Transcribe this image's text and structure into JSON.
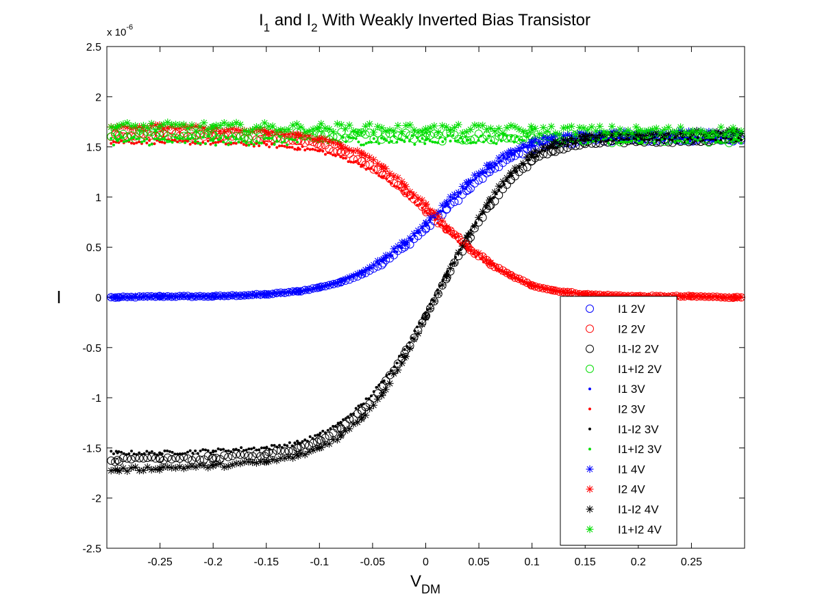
{
  "chart_data": {
    "type": "scatter",
    "title": {
      "main": "I",
      "sub1": "1",
      "mid": " and I",
      "sub2": "2",
      "rest": " With Weakly Inverted Bias Transistor"
    },
    "xlabel": {
      "main": "V",
      "sub": "DM"
    },
    "ylabel": "I",
    "exponent": {
      "prefix": "x 10",
      "power": "-6"
    },
    "xlim": [
      -0.3,
      0.3
    ],
    "ylim": [
      -2.5,
      2.5
    ],
    "xticks": [
      -0.25,
      -0.2,
      -0.15,
      -0.1,
      -0.05,
      0,
      0.05,
      0.1,
      0.15,
      0.2,
      0.25
    ],
    "xtick_labels": [
      "-0.25",
      "-0.2",
      "-0.15",
      "-0.1",
      "-0.05",
      "0",
      "0.05",
      "0.1",
      "0.15",
      "0.2",
      "0.25"
    ],
    "yticks": [
      -2.5,
      -2,
      -1.5,
      -1,
      -0.5,
      0,
      0.5,
      1,
      1.5,
      2,
      2.5
    ],
    "ytick_labels": [
      "-2.5",
      "-2",
      "-1.5",
      "-1",
      "-0.5",
      "0",
      "0.5",
      "1",
      "1.5",
      "2",
      "2.5"
    ],
    "grid": false,
    "legend_position": "lower-right",
    "series": [
      {
        "name": "I1 2V",
        "color": "#0000ff",
        "marker": "circle",
        "x": [
          -0.29,
          -0.25,
          -0.2,
          -0.15,
          -0.12,
          -0.1,
          -0.08,
          -0.06,
          -0.04,
          -0.02,
          0,
          0.02,
          0.04,
          0.06,
          0.08,
          0.1,
          0.12,
          0.15,
          0.2,
          0.25,
          0.29
        ],
        "y": [
          0,
          0.01,
          0.01,
          0.03,
          0.06,
          0.1,
          0.15,
          0.23,
          0.34,
          0.5,
          0.68,
          0.88,
          1.07,
          1.25,
          1.39,
          1.48,
          1.53,
          1.56,
          1.57,
          1.57,
          1.57
        ]
      },
      {
        "name": "I2 2V",
        "color": "#ff0000",
        "marker": "circle",
        "x": [
          -0.29,
          -0.25,
          -0.2,
          -0.15,
          -0.12,
          -0.1,
          -0.08,
          -0.06,
          -0.04,
          -0.02,
          0,
          0.02,
          0.04,
          0.06,
          0.08,
          0.1,
          0.12,
          0.15,
          0.2,
          0.25,
          0.29
        ],
        "y": [
          1.62,
          1.62,
          1.61,
          1.59,
          1.56,
          1.52,
          1.45,
          1.36,
          1.22,
          1.06,
          0.87,
          0.68,
          0.5,
          0.34,
          0.22,
          0.12,
          0.07,
          0.03,
          0.01,
          0.01,
          0
        ]
      },
      {
        "name": "I1-I2 2V",
        "color": "#000000",
        "marker": "circle",
        "x": [
          -0.29,
          -0.25,
          -0.2,
          -0.15,
          -0.12,
          -0.1,
          -0.08,
          -0.06,
          -0.04,
          -0.02,
          0,
          0.02,
          0.04,
          0.06,
          0.08,
          0.1,
          0.12,
          0.15,
          0.2,
          0.25,
          0.29
        ],
        "y": [
          -1.62,
          -1.61,
          -1.6,
          -1.56,
          -1.5,
          -1.42,
          -1.3,
          -1.13,
          -0.88,
          -0.56,
          -0.19,
          0.2,
          0.57,
          0.91,
          1.17,
          1.36,
          1.46,
          1.53,
          1.56,
          1.56,
          1.57
        ]
      },
      {
        "name": "I1+I2 2V",
        "color": "#00dd00",
        "marker": "circle",
        "x": [
          -0.29,
          -0.2,
          -0.1,
          0,
          0.1,
          0.2,
          0.29
        ],
        "y": [
          1.62,
          1.62,
          1.62,
          1.6,
          1.59,
          1.58,
          1.57
        ]
      },
      {
        "name": "I1 3V",
        "color": "#0000ff",
        "marker": "dot",
        "x": [
          -0.29,
          -0.25,
          -0.2,
          -0.15,
          -0.12,
          -0.1,
          -0.08,
          -0.06,
          -0.04,
          -0.02,
          0,
          0.02,
          0.04,
          0.06,
          0.08,
          0.1,
          0.12,
          0.15,
          0.2,
          0.25,
          0.29
        ],
        "y": [
          0,
          0.01,
          0.01,
          0.03,
          0.06,
          0.1,
          0.16,
          0.25,
          0.37,
          0.53,
          0.72,
          0.92,
          1.12,
          1.29,
          1.43,
          1.52,
          1.56,
          1.58,
          1.58,
          1.58,
          1.58
        ]
      },
      {
        "name": "I2 3V",
        "color": "#ff0000",
        "marker": "dot",
        "x": [
          -0.29,
          -0.25,
          -0.2,
          -0.15,
          -0.12,
          -0.1,
          -0.08,
          -0.06,
          -0.04,
          -0.02,
          0,
          0.02,
          0.04,
          0.06,
          0.08,
          0.1,
          0.12,
          0.15,
          0.2,
          0.25,
          0.29
        ],
        "y": [
          1.55,
          1.55,
          1.54,
          1.52,
          1.49,
          1.46,
          1.4,
          1.32,
          1.2,
          1.04,
          0.86,
          0.66,
          0.48,
          0.33,
          0.21,
          0.12,
          0.07,
          0.03,
          0.01,
          0.01,
          0
        ]
      },
      {
        "name": "I1-I2 3V",
        "color": "#000000",
        "marker": "dot",
        "x": [
          -0.29,
          -0.25,
          -0.2,
          -0.15,
          -0.12,
          -0.1,
          -0.08,
          -0.06,
          -0.04,
          -0.02,
          0,
          0.02,
          0.04,
          0.06,
          0.08,
          0.1,
          0.12,
          0.15,
          0.2,
          0.25,
          0.29
        ],
        "y": [
          -1.55,
          -1.55,
          -1.53,
          -1.5,
          -1.45,
          -1.37,
          -1.25,
          -1.07,
          -0.84,
          -0.52,
          -0.15,
          0.25,
          0.63,
          0.96,
          1.22,
          1.4,
          1.5,
          1.56,
          1.58,
          1.58,
          1.58
        ]
      },
      {
        "name": "I1+I2 3V",
        "color": "#00dd00",
        "marker": "dot",
        "x": [
          -0.29,
          -0.2,
          -0.1,
          0,
          0.1,
          0.2,
          0.29
        ],
        "y": [
          1.56,
          1.56,
          1.56,
          1.57,
          1.58,
          1.58,
          1.58
        ]
      },
      {
        "name": "I1 4V",
        "color": "#0000ff",
        "marker": "star",
        "x": [
          -0.29,
          -0.25,
          -0.2,
          -0.15,
          -0.12,
          -0.1,
          -0.08,
          -0.06,
          -0.04,
          -0.02,
          0,
          0.02,
          0.04,
          0.06,
          0.08,
          0.1,
          0.12,
          0.15,
          0.2,
          0.25,
          0.29
        ],
        "y": [
          0,
          0.01,
          0.01,
          0.03,
          0.06,
          0.1,
          0.16,
          0.25,
          0.38,
          0.55,
          0.74,
          0.95,
          1.15,
          1.32,
          1.46,
          1.55,
          1.6,
          1.63,
          1.64,
          1.65,
          1.65
        ]
      },
      {
        "name": "I2 4V",
        "color": "#ff0000",
        "marker": "star",
        "x": [
          -0.29,
          -0.25,
          -0.2,
          -0.15,
          -0.12,
          -0.1,
          -0.08,
          -0.06,
          -0.04,
          -0.02,
          0,
          0.02,
          0.04,
          0.06,
          0.08,
          0.1,
          0.12,
          0.15,
          0.2,
          0.25,
          0.29
        ],
        "y": [
          1.7,
          1.7,
          1.68,
          1.65,
          1.62,
          1.58,
          1.52,
          1.43,
          1.3,
          1.12,
          0.92,
          0.7,
          0.5,
          0.34,
          0.22,
          0.12,
          0.07,
          0.03,
          0.01,
          0.01,
          0
        ]
      },
      {
        "name": "I1-I2 4V",
        "color": "#000000",
        "marker": "star",
        "x": [
          -0.29,
          -0.25,
          -0.2,
          -0.15,
          -0.12,
          -0.1,
          -0.08,
          -0.06,
          -0.04,
          -0.02,
          0,
          0.02,
          0.04,
          0.06,
          0.08,
          0.1,
          0.12,
          0.15,
          0.2,
          0.25,
          0.29
        ],
        "y": [
          -1.72,
          -1.7,
          -1.68,
          -1.64,
          -1.58,
          -1.5,
          -1.38,
          -1.2,
          -0.95,
          -0.6,
          -0.2,
          0.22,
          0.62,
          0.97,
          1.24,
          1.43,
          1.53,
          1.6,
          1.63,
          1.64,
          1.65
        ]
      },
      {
        "name": "I1+I2 4V",
        "color": "#00dd00",
        "marker": "star",
        "x": [
          -0.29,
          -0.2,
          -0.1,
          0,
          0.1,
          0.2,
          0.29
        ],
        "y": [
          1.7,
          1.7,
          1.69,
          1.68,
          1.67,
          1.66,
          1.66
        ]
      }
    ]
  }
}
